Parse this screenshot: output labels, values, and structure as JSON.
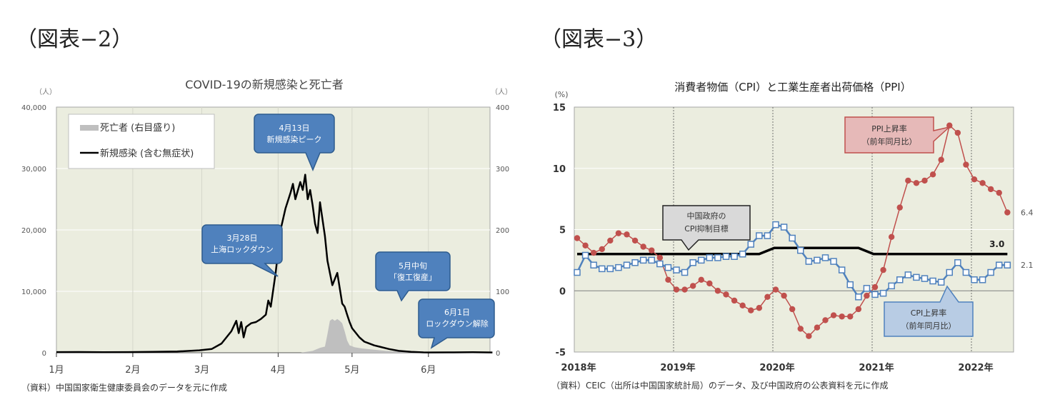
{
  "figures": {
    "left_label": "（図表−2）",
    "right_label": "（図表−3）"
  },
  "chart_data": [
    {
      "type": "line",
      "title": "COVID-19の新規感染と死亡者",
      "ylabel_left_unit": "（人）",
      "ylabel_right_unit": "（人）",
      "ylim_left": [
        0,
        40000
      ],
      "ylim_right": [
        0,
        400
      ],
      "yticks_left": [
        "40,000",
        "30,000",
        "20,000",
        "10,000",
        "0"
      ],
      "yticks_right": [
        "400",
        "300",
        "200",
        "100",
        "0"
      ],
      "xticks": [
        "1月",
        "2月",
        "3月",
        "4月",
        "5月",
        "6月"
      ],
      "grid": true,
      "legend": {
        "position": "upper-left",
        "entries": [
          "死亡者 (右目盛り)",
          "新規感染 (含む無症状)"
        ]
      },
      "series": [
        {
          "name": "新規感染 (含む無症状)",
          "axis": "left",
          "color": "#000000",
          "x_dayofyear": [
            1,
            10,
            20,
            30,
            40,
            50,
            59,
            64,
            68,
            72,
            74,
            75,
            76,
            77,
            78,
            80,
            82,
            84,
            86,
            87,
            88,
            90,
            92,
            94,
            96,
            97,
            98,
            100,
            101,
            102,
            103,
            104,
            105,
            106,
            107,
            108,
            110,
            111,
            113,
            115,
            117,
            118,
            119,
            120,
            121,
            122,
            124,
            126,
            128,
            130,
            132,
            136,
            140,
            145,
            150,
            152,
            160,
            170,
            178
          ],
          "values": [
            100,
            120,
            80,
            110,
            150,
            200,
            400,
            600,
            1500,
            3500,
            5200,
            3200,
            5000,
            2500,
            4200,
            4800,
            5000,
            5500,
            6200,
            8500,
            7500,
            13000,
            20000,
            23500,
            26000,
            27500,
            25000,
            27800,
            26500,
            29000,
            25000,
            26500,
            24000,
            21000,
            19500,
            24500,
            19000,
            15000,
            11000,
            13000,
            8000,
            7500,
            6200,
            5000,
            4000,
            3500,
            2500,
            1800,
            1500,
            1200,
            1000,
            600,
            300,
            150,
            60,
            50,
            60,
            80,
            50
          ]
        },
        {
          "name": "死亡者 (右目盛り)",
          "axis": "right",
          "color": "#bfbfbf",
          "x_dayofyear": [
            100,
            105,
            108,
            110,
            111,
            112,
            113,
            114,
            115,
            116,
            117,
            118,
            119,
            120,
            122,
            125,
            130,
            135,
            140,
            145
          ],
          "values": [
            0,
            3,
            8,
            10,
            30,
            52,
            55,
            52,
            55,
            52,
            48,
            35,
            20,
            12,
            9,
            7,
            5,
            3,
            2,
            0
          ]
        }
      ],
      "annotations": [
        {
          "line1": "4月13日",
          "line2": "新規感染ピーク"
        },
        {
          "line1": "3月28日",
          "line2": "上海ロックダウン"
        },
        {
          "line1": "5月中旬",
          "line2": "「復工復産」"
        },
        {
          "line1": "6月1日",
          "line2": "ロックダウン解除"
        }
      ],
      "source": "（資料）中国国家衛生健康委員会のデータを元に作成"
    },
    {
      "type": "line",
      "title": "消費者物価（CPI）と工業生産者出荷価格（PPI）",
      "ylabel": "(%)",
      "ylim": [
        -5,
        15
      ],
      "yticks": [
        "15",
        "10",
        "5",
        "0",
        "-5"
      ],
      "xticks": [
        "2018年",
        "2019年",
        "2020年",
        "2021年",
        "2022年"
      ],
      "x_start": "2018-01",
      "grid": true,
      "series": [
        {
          "name": "PPI上昇率（前年同月比）",
          "color": "#c0504d",
          "marker": "circle",
          "values": [
            4.3,
            3.7,
            3.1,
            3.4,
            4.1,
            4.7,
            4.6,
            4.1,
            3.6,
            3.3,
            2.7,
            0.9,
            0.1,
            0.1,
            0.4,
            0.9,
            0.6,
            0.0,
            -0.3,
            -0.8,
            -1.2,
            -1.6,
            -1.4,
            -0.5,
            0.1,
            -0.4,
            -1.5,
            -3.1,
            -3.7,
            -3.0,
            -2.4,
            -2.0,
            -2.1,
            -2.1,
            -1.5,
            -0.4,
            0.3,
            1.7,
            4.4,
            6.8,
            9.0,
            8.8,
            9.0,
            9.5,
            10.7,
            13.5,
            12.9,
            10.3,
            9.1,
            8.8,
            8.3,
            8.0,
            6.4
          ],
          "last_label": "6.4"
        },
        {
          "name": "CPI上昇率（前年同月比）",
          "color": "#4f81bd",
          "marker": "square-open",
          "values": [
            1.5,
            2.9,
            2.1,
            1.8,
            1.8,
            1.9,
            2.1,
            2.3,
            2.5,
            2.5,
            2.2,
            1.9,
            1.7,
            1.5,
            2.3,
            2.5,
            2.7,
            2.7,
            2.8,
            2.8,
            3.0,
            3.8,
            4.5,
            4.5,
            5.4,
            5.2,
            4.3,
            3.3,
            2.4,
            2.5,
            2.7,
            2.4,
            1.7,
            0.5,
            -0.5,
            0.2,
            -0.3,
            -0.2,
            0.4,
            0.9,
            1.3,
            1.1,
            1.0,
            0.8,
            0.7,
            1.5,
            2.3,
            1.5,
            0.9,
            0.9,
            1.5,
            2.1,
            2.1
          ],
          "last_label": "2.1"
        },
        {
          "name": "中国政府のCPI抑制目標",
          "color": "#000000",
          "values_by_period": [
            {
              "from": "2018-01",
              "to": "2019-12",
              "value": 3.0
            },
            {
              "from": "2020-01",
              "to": "2020-12",
              "value": 3.5
            },
            {
              "from": "2021-01",
              "to": "2022-05",
              "value": 3.0
            }
          ],
          "last_label": "3.0"
        }
      ],
      "annotations": [
        {
          "line1": "中国政府の",
          "line2": "CPI抑制目標"
        },
        {
          "line1": "PPI上昇率",
          "line2": "（前年同月比）"
        },
        {
          "line1": "CPI上昇率",
          "line2": "（前年同月比）"
        }
      ],
      "source": "（資料）CEIC（出所は中国国家統計局）のデータ、及び中国政府の公表資料を元に作成"
    }
  ]
}
